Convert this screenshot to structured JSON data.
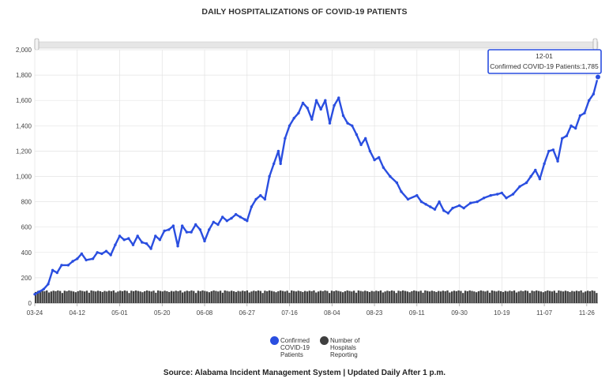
{
  "title": "DAILY HOSPITALIZATIONS OF COVID-19 PATIENTS",
  "source": "Source: Alabama Incident Management System | Updated Daily After 1 p.m.",
  "tooltip": {
    "date": "12-01",
    "text": "Confirmed COVID-19 Patients:1,785"
  },
  "legend": [
    {
      "label": "Confirmed COVID-19 Patients",
      "color": "#2a4ee0"
    },
    {
      "label": "Number of Hospitals Reporting",
      "color": "#3f3f3f"
    }
  ],
  "chart_data": {
    "type": "line",
    "x_tick_labels": [
      "03-24",
      "04-12",
      "05-01",
      "05-20",
      "06-08",
      "06-27",
      "07-16",
      "08-04",
      "08-23",
      "09-11",
      "09-30",
      "10-19",
      "11-07",
      "11-26"
    ],
    "y_tick_labels": [
      "0",
      "200",
      "400",
      "600",
      "800",
      "1,000",
      "1,200",
      "1,400",
      "1,600",
      "1,800",
      "2,000"
    ],
    "ylim": [
      0,
      2000
    ],
    "x_range": [
      "03-24",
      "12-01"
    ],
    "grid": true,
    "legend_position": "bottom",
    "series": [
      {
        "name": "Confirmed COVID-19 Patients",
        "type": "line",
        "color": "#2a4ee0",
        "points": [
          [
            "03-24",
            70
          ],
          [
            "03-26",
            90
          ],
          [
            "03-28",
            110
          ],
          [
            "03-30",
            150
          ],
          [
            "04-01",
            260
          ],
          [
            "04-03",
            240
          ],
          [
            "04-05",
            300
          ],
          [
            "04-08",
            300
          ],
          [
            "04-10",
            330
          ],
          [
            "04-12",
            350
          ],
          [
            "04-14",
            390
          ],
          [
            "04-16",
            340
          ],
          [
            "04-19",
            350
          ],
          [
            "04-21",
            400
          ],
          [
            "04-23",
            390
          ],
          [
            "04-25",
            410
          ],
          [
            "04-27",
            380
          ],
          [
            "04-29",
            460
          ],
          [
            "05-01",
            530
          ],
          [
            "05-03",
            500
          ],
          [
            "05-05",
            510
          ],
          [
            "05-07",
            460
          ],
          [
            "05-09",
            530
          ],
          [
            "05-11",
            480
          ],
          [
            "05-13",
            470
          ],
          [
            "05-15",
            430
          ],
          [
            "05-17",
            530
          ],
          [
            "05-19",
            500
          ],
          [
            "05-21",
            570
          ],
          [
            "05-23",
            580
          ],
          [
            "05-25",
            610
          ],
          [
            "05-27",
            450
          ],
          [
            "05-29",
            610
          ],
          [
            "05-31",
            560
          ],
          [
            "06-02",
            560
          ],
          [
            "06-04",
            620
          ],
          [
            "06-06",
            580
          ],
          [
            "06-08",
            490
          ],
          [
            "06-10",
            580
          ],
          [
            "06-12",
            640
          ],
          [
            "06-14",
            620
          ],
          [
            "06-16",
            680
          ],
          [
            "06-18",
            650
          ],
          [
            "06-20",
            670
          ],
          [
            "06-22",
            700
          ],
          [
            "06-24",
            680
          ],
          [
            "06-26",
            660
          ],
          [
            "06-27",
            650
          ],
          [
            "06-29",
            760
          ],
          [
            "07-01",
            820
          ],
          [
            "07-03",
            850
          ],
          [
            "07-05",
            820
          ],
          [
            "07-07",
            1000
          ],
          [
            "07-09",
            1100
          ],
          [
            "07-11",
            1200
          ],
          [
            "07-12",
            1100
          ],
          [
            "07-14",
            1300
          ],
          [
            "07-16",
            1400
          ],
          [
            "07-18",
            1460
          ],
          [
            "07-20",
            1500
          ],
          [
            "07-22",
            1580
          ],
          [
            "07-24",
            1540
          ],
          [
            "07-26",
            1450
          ],
          [
            "07-28",
            1600
          ],
          [
            "07-30",
            1530
          ],
          [
            "08-01",
            1600
          ],
          [
            "08-03",
            1420
          ],
          [
            "08-05",
            1560
          ],
          [
            "08-07",
            1620
          ],
          [
            "08-09",
            1480
          ],
          [
            "08-11",
            1420
          ],
          [
            "08-13",
            1400
          ],
          [
            "08-15",
            1330
          ],
          [
            "08-17",
            1250
          ],
          [
            "08-19",
            1300
          ],
          [
            "08-21",
            1200
          ],
          [
            "08-23",
            1130
          ],
          [
            "08-25",
            1150
          ],
          [
            "08-27",
            1070
          ],
          [
            "08-30",
            1000
          ],
          [
            "09-02",
            950
          ],
          [
            "09-04",
            880
          ],
          [
            "09-07",
            820
          ],
          [
            "09-11",
            850
          ],
          [
            "09-13",
            800
          ],
          [
            "09-15",
            780
          ],
          [
            "09-17",
            760
          ],
          [
            "09-19",
            740
          ],
          [
            "09-21",
            800
          ],
          [
            "09-23",
            730
          ],
          [
            "09-25",
            710
          ],
          [
            "09-27",
            750
          ],
          [
            "09-30",
            770
          ],
          [
            "10-02",
            750
          ],
          [
            "10-05",
            790
          ],
          [
            "10-08",
            800
          ],
          [
            "10-11",
            830
          ],
          [
            "10-14",
            850
          ],
          [
            "10-17",
            860
          ],
          [
            "10-19",
            870
          ],
          [
            "10-21",
            830
          ],
          [
            "10-24",
            860
          ],
          [
            "10-27",
            920
          ],
          [
            "10-30",
            950
          ],
          [
            "11-01",
            1000
          ],
          [
            "11-03",
            1050
          ],
          [
            "11-05",
            980
          ],
          [
            "11-07",
            1100
          ],
          [
            "11-09",
            1200
          ],
          [
            "11-11",
            1210
          ],
          [
            "11-13",
            1120
          ],
          [
            "11-15",
            1300
          ],
          [
            "11-17",
            1320
          ],
          [
            "11-19",
            1400
          ],
          [
            "11-21",
            1380
          ],
          [
            "11-23",
            1480
          ],
          [
            "11-25",
            1500
          ],
          [
            "11-27",
            1600
          ],
          [
            "11-29",
            1650
          ],
          [
            "12-01",
            1785
          ]
        ]
      },
      {
        "name": "Number of Hospitals Reporting",
        "type": "bar",
        "color": "#3f3f3f",
        "value_range": [
          80,
          105
        ],
        "typical_value": 100
      }
    ]
  }
}
